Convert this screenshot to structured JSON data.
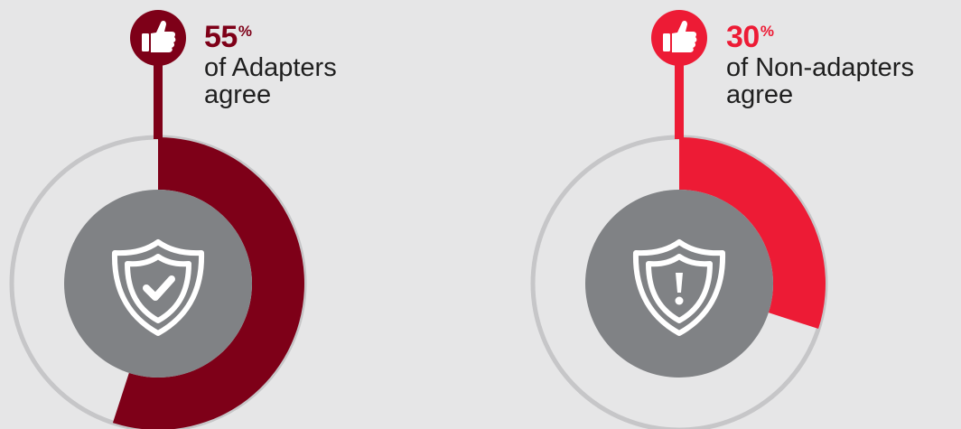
{
  "chart_data": [
    {
      "type": "pie",
      "variant": "donut",
      "value": 55,
      "value_label": "55",
      "unit": "%",
      "caption_line1": "of Adapters",
      "caption_line2": "agree",
      "color": "#7e0018",
      "track_color": "#c6c6c8",
      "center_color": "#808285",
      "center_icon": "shield-check-icon",
      "marker_icon": "thumbs-up-icon"
    },
    {
      "type": "pie",
      "variant": "donut",
      "value": 30,
      "value_label": "30",
      "unit": "%",
      "caption_line1": "of Non-adapters",
      "caption_line2": "agree",
      "color": "#ed1b35",
      "track_color": "#c6c6c8",
      "center_color": "#808285",
      "center_icon": "shield-exclamation-icon",
      "marker_icon": "thumbs-up-icon"
    }
  ]
}
